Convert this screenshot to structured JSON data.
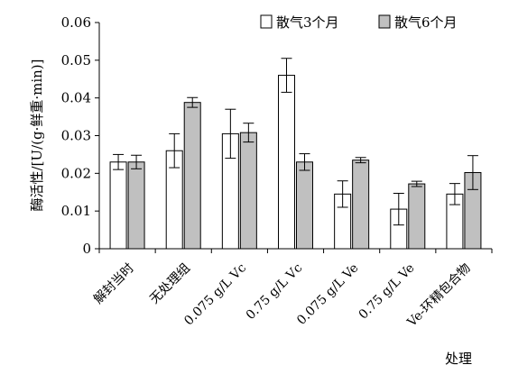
{
  "chart_data": {
    "type": "bar",
    "title": "",
    "xlabel": "处理",
    "ylabel": "酶活性/[U/(g·鲜重·min)]",
    "ylim": [
      0,
      0.06
    ],
    "yticks": [
      "0",
      "0.01",
      "0.02",
      "0.03",
      "0.04",
      "0.05",
      "0.06"
    ],
    "categories": [
      "解封当时",
      "无处理组",
      "0.075 g/L Vc",
      "0.75 g/L Vc",
      "0.075 g/L Ve",
      "0.75 g/L Ve",
      "Ve-环精包合物"
    ],
    "series": [
      {
        "name": "散气3个月",
        "color": "#ffffff",
        "values": [
          0.023,
          0.026,
          0.0305,
          0.046,
          0.0145,
          0.0105,
          0.0145
        ],
        "errors": [
          0.002,
          0.0045,
          0.0065,
          0.0045,
          0.0035,
          0.0042,
          0.0028
        ]
      },
      {
        "name": "散气6个月",
        "color": "#c0c0c0",
        "values": [
          0.023,
          0.0388,
          0.0308,
          0.023,
          0.0235,
          0.0172,
          0.0202
        ],
        "errors": [
          0.0018,
          0.0013,
          0.0025,
          0.0022,
          0.0007,
          0.0007,
          0.0045
        ]
      }
    ],
    "grid": false,
    "legend": "top-right"
  }
}
